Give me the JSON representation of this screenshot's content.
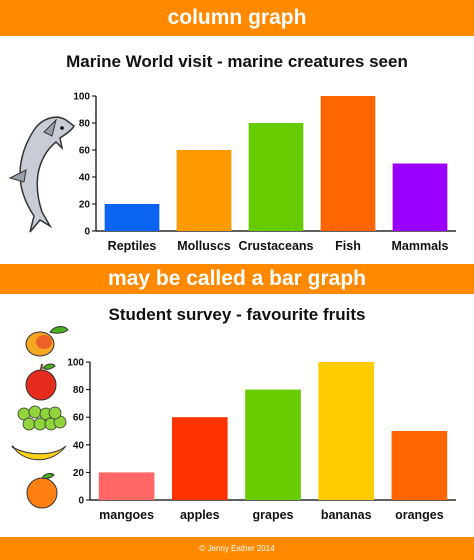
{
  "banners": {
    "top": "column graph",
    "middle": "may be called a bar graph"
  },
  "footer": "© Jenny Eather 2014",
  "colors": {
    "banner": "#ff8a00",
    "axis": "#000000"
  },
  "chart_data": [
    {
      "type": "bar",
      "title": "Marine World visit - marine creatures seen",
      "categories": [
        "Reptiles",
        "Molluscs",
        "Crustaceans",
        "Fish",
        "Mammals"
      ],
      "values": [
        20,
        60,
        80,
        100,
        50
      ],
      "colors": [
        "#0a64f0",
        "#ff9900",
        "#66cc00",
        "#ff6600",
        "#9900ff"
      ],
      "ylim": [
        0,
        100
      ],
      "yticks": [
        0,
        20,
        40,
        60,
        80,
        100
      ],
      "xlabel": "",
      "ylabel": "",
      "grid": false,
      "legend": "none"
    },
    {
      "type": "bar",
      "title": "Student survey - favourite fruits",
      "categories": [
        "mangoes",
        "apples",
        "grapes",
        "bananas",
        "oranges"
      ],
      "values": [
        20,
        60,
        80,
        100,
        50
      ],
      "colors": [
        "#ff6666",
        "#ff3300",
        "#66cc00",
        "#ffcc00",
        "#ff6600"
      ],
      "ylim": [
        0,
        100
      ],
      "yticks": [
        0,
        20,
        40,
        60,
        80,
        100
      ],
      "xlabel": "",
      "ylabel": "",
      "grid": false,
      "legend": "none"
    }
  ],
  "pictures": [
    "dolphin",
    "mango",
    "apple",
    "grapes",
    "banana",
    "orange"
  ]
}
